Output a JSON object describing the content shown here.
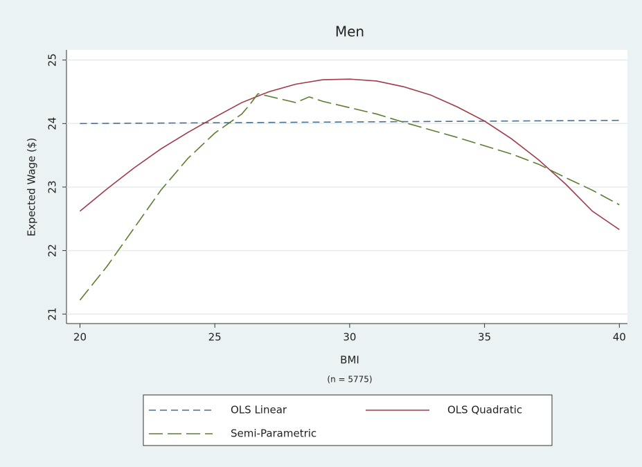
{
  "chart_data": {
    "type": "line",
    "title": "Men",
    "xlabel": "BMI",
    "ylabel": "Expected Wage ($)",
    "note": "(n = 5775)",
    "xlim": [
      19.5,
      40.3
    ],
    "ylim": [
      20.85,
      25.16
    ],
    "xticks": [
      20,
      25,
      30,
      35,
      40
    ],
    "yticks": [
      21,
      22,
      23,
      24,
      25
    ],
    "grid": true,
    "series": [
      {
        "name": "OLS Linear",
        "color": "#4a6f8f",
        "linestyle": "dashed",
        "x": [
          20,
          40
        ],
        "values": [
          24.0,
          24.05
        ]
      },
      {
        "name": "OLS Quadratic",
        "color": "#a03a48",
        "linestyle": "solid",
        "x": [
          20,
          21,
          22,
          23,
          24,
          25,
          26,
          27,
          28,
          29,
          30,
          31,
          32,
          33,
          34,
          35,
          36,
          37,
          38,
          39,
          40
        ],
        "values": [
          22.62,
          22.97,
          23.3,
          23.6,
          23.86,
          24.1,
          24.33,
          24.5,
          24.62,
          24.69,
          24.7,
          24.67,
          24.58,
          24.45,
          24.26,
          24.04,
          23.76,
          23.43,
          23.05,
          22.62,
          22.33
        ]
      },
      {
        "name": "Semi-Parametric",
        "color": "#5a7d2e",
        "linestyle": "longdash",
        "x": [
          20,
          21,
          22,
          23,
          24,
          25,
          25.5,
          26,
          26.3,
          26.6,
          27,
          27.5,
          28,
          28.5,
          29,
          29.5,
          30,
          31,
          32,
          33,
          34,
          35,
          36,
          37,
          38,
          39,
          40
        ],
        "values": [
          21.22,
          21.75,
          22.35,
          22.95,
          23.45,
          23.85,
          24.0,
          24.15,
          24.3,
          24.47,
          24.43,
          24.38,
          24.33,
          24.42,
          24.35,
          24.3,
          24.25,
          24.15,
          24.02,
          23.9,
          23.78,
          23.65,
          23.52,
          23.36,
          23.15,
          22.95,
          22.72
        ]
      }
    ]
  }
}
